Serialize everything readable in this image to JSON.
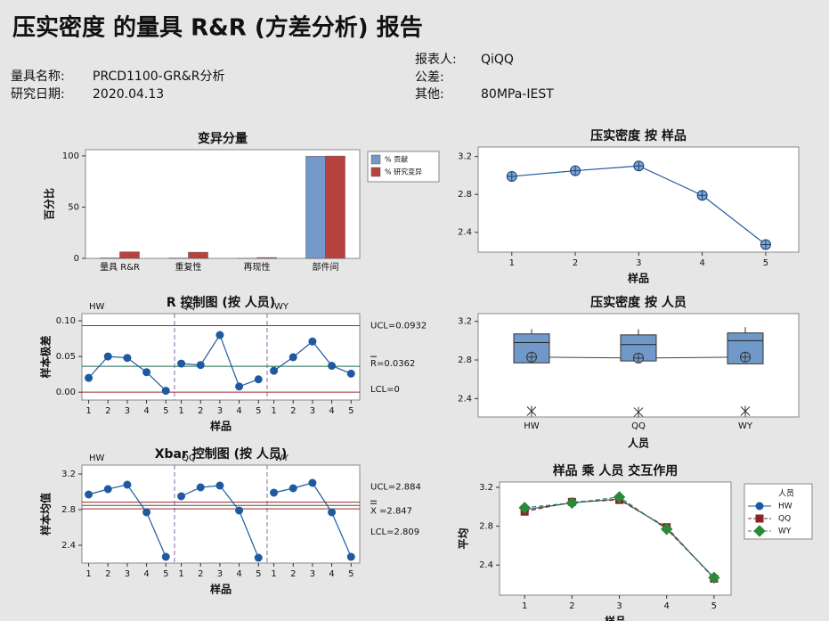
{
  "header": {
    "title": "压实密度 的量具 R&R (方差分析) 报告",
    "fields": [
      {
        "label": "量具名称:",
        "value": "PRCD1100-GR&R分析"
      },
      {
        "label": "研究日期:",
        "value": "2020.04.13"
      },
      {
        "label": "报表人:",
        "value": "QiQQ"
      },
      {
        "label": "公差:"
      },
      {
        "label": "其他:",
        "value": "80MPa-IEST"
      }
    ]
  },
  "chart_data": [
    {
      "type": "bar",
      "title": "变异分量",
      "ylabel": "百分比",
      "categories": [
        "量具 R&R",
        "重复性",
        "再现性",
        "部件间"
      ],
      "series": [
        {
          "name": "% 贡献",
          "color": "#7498c8",
          "values": [
            0.4,
            0.3,
            0.1,
            99.6
          ]
        },
        {
          "name": "% 研究变异",
          "color": "#b8433e",
          "values": [
            6.4,
            6.0,
            0.8,
            99.8
          ]
        }
      ],
      "ylim": [
        0,
        106
      ],
      "yticks": [
        0,
        50,
        100
      ]
    },
    {
      "type": "control",
      "title": "R 控制图 (按 人员)",
      "ylabel": "样本极差",
      "xlabel": "样品",
      "x": [
        1,
        2,
        3,
        4,
        5
      ],
      "xlim": [
        0.65,
        5.45
      ],
      "groups": [
        {
          "name": "HW",
          "values": [
            0.02,
            0.05,
            0.048,
            0.028,
            0.002
          ]
        },
        {
          "name": "QQ",
          "values": [
            0.04,
            0.038,
            0.08,
            0.008,
            0.018
          ]
        },
        {
          "name": "WY",
          "values": [
            0.03,
            0.049,
            0.071,
            0.037,
            0.026
          ]
        }
      ],
      "limits": [
        {
          "label": "UCL=0.0932",
          "value": 0.0932,
          "color": "#a02828"
        },
        {
          "label": "R=0.0362",
          "value": 0.0362,
          "color": "#1a6a4a"
        },
        {
          "label": "LCL=0",
          "value": 0,
          "color": "#a02828"
        }
      ],
      "ylim": [
        -0.011,
        0.11
      ],
      "yticks": [
        {
          "value": 0,
          "label": "0.00"
        },
        0.05,
        {
          "value": 0.1,
          "label": "0.10"
        }
      ]
    },
    {
      "type": "control",
      "title": "Xbar 控制图 (按 人员)",
      "ylabel": "样本均值",
      "xlabel": "样品",
      "x": [
        1,
        2,
        3,
        4,
        5
      ],
      "xlim": [
        0.65,
        5.45
      ],
      "groups": [
        {
          "name": "HW",
          "values": [
            2.97,
            3.03,
            3.08,
            2.77,
            2.27
          ]
        },
        {
          "name": "QQ",
          "values": [
            2.95,
            3.05,
            3.07,
            2.79,
            2.26
          ]
        },
        {
          "name": "WY",
          "values": [
            2.99,
            3.04,
            3.1,
            2.77,
            2.27
          ]
        }
      ],
      "limits": [
        {
          "label": "UCL=2.884",
          "value": 2.884,
          "color": "#a02828"
        },
        {
          "label": "X =2.847",
          "value": 2.847,
          "color": "#1a6a4a"
        },
        {
          "label": "LCL=2.809",
          "value": 2.809,
          "color": "#a02828"
        }
      ],
      "ylim": [
        2.2,
        3.3
      ],
      "yticks": [
        2.4,
        2.8,
        3.2
      ]
    },
    {
      "type": "line",
      "title": "压实密度 按 样品",
      "xlabel": "样品",
      "x": [
        1,
        2,
        3,
        4,
        5
      ],
      "values": [
        2.99,
        3.05,
        3.1,
        2.79,
        2.27
      ],
      "xlim": [
        0.47,
        5.52
      ],
      "xticks": [
        1,
        2,
        3,
        4,
        5
      ],
      "ylim": [
        2.19,
        3.3
      ],
      "yticks": [
        2.4,
        2.8,
        3.2
      ]
    },
    {
      "type": "box",
      "title": "压实密度 按 人员",
      "xlabel": "人员",
      "categories": [
        "HW",
        "QQ",
        "WY"
      ],
      "boxes": [
        {
          "q1": 2.77,
          "median": 2.98,
          "q3": 3.07,
          "whisker_high": 3.12,
          "outliers": [
            2.27
          ],
          "mean": 2.83
        },
        {
          "q1": 2.79,
          "median": 2.96,
          "q3": 3.06,
          "whisker_high": 3.12,
          "outliers": [
            2.26
          ],
          "mean": 2.82
        },
        {
          "q1": 2.76,
          "median": 3.0,
          "q3": 3.08,
          "whisker_high": 3.14,
          "outliers": [
            2.27
          ],
          "mean": 2.83
        }
      ],
      "ylim": [
        2.21,
        3.28
      ],
      "yticks": [
        2.4,
        2.8,
        3.2
      ]
    },
    {
      "type": "interaction",
      "title": "样品 乘 人员 交互作用",
      "ylabel": "平均",
      "xlabel": "样品",
      "legend_title": "人员",
      "x": [
        1,
        2,
        3,
        4,
        5
      ],
      "xlim": [
        0.47,
        5.36
      ],
      "xticks": [
        1,
        2,
        3,
        4,
        5
      ],
      "series": [
        {
          "name": "HW",
          "color": "#1f5aa0",
          "marker": "circle",
          "dashed": false,
          "values": [
            2.97,
            3.04,
            3.08,
            2.78,
            2.27
          ]
        },
        {
          "name": "QQ",
          "color": "#8b2525",
          "marker": "square",
          "dashed": true,
          "values": [
            2.95,
            3.05,
            3.07,
            2.79,
            2.26
          ]
        },
        {
          "name": "WY",
          "color": "#2a8a3a",
          "marker": "diamond",
          "dashed": true,
          "values": [
            2.99,
            3.04,
            3.1,
            2.77,
            2.27
          ]
        }
      ],
      "ylim": [
        2.09,
        3.255
      ],
      "yticks": [
        2.4,
        2.8,
        3.2
      ]
    }
  ]
}
